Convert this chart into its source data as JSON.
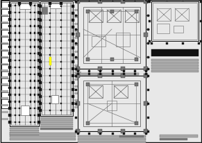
{
  "bg_color": "#e8e8e8",
  "line_color": "#666666",
  "dark_color": "#111111",
  "gray_color": "#777777",
  "light_gray": "#aaaaaa",
  "white": "#ffffff",
  "yellow": "#ffff00",
  "figsize": [
    2.91,
    2.07
  ],
  "dpi": 100
}
